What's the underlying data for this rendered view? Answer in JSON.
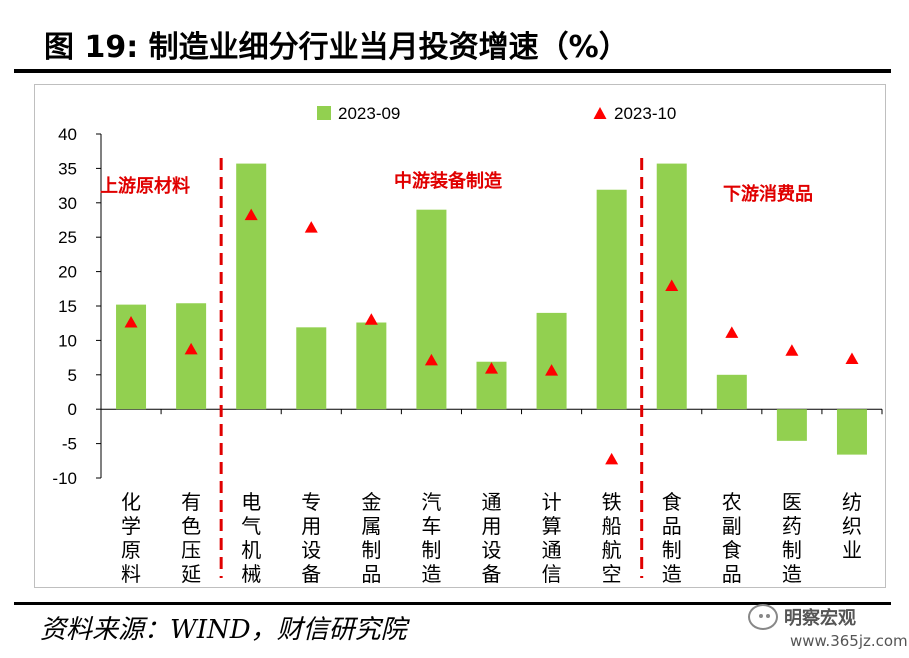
{
  "header": {
    "title": "图 19:  制造业细分行业当月投资增速（%）"
  },
  "footer": {
    "source": "资料来源：WIND，财信研究院",
    "watermark_name": "明察宏观",
    "watermark_url": "www.365jz.com"
  },
  "chart_data": {
    "type": "bar",
    "title": "",
    "xlabel": "",
    "ylabel": "",
    "ylim": [
      -10,
      40
    ],
    "yticks": [
      40,
      35,
      30,
      25,
      20,
      15,
      10,
      5,
      0,
      -5,
      -10
    ],
    "categories": [
      "化学原料",
      "有色压延",
      "电气机械",
      "专用设备",
      "金属制品",
      "汽车制造",
      "通用设备",
      "计算通信",
      "铁船航空",
      "食品制造",
      "农副食品",
      "医药制造",
      "纺织业"
    ],
    "series": [
      {
        "name": "2023-09",
        "kind": "bar",
        "color": "#92d050",
        "values": [
          15.2,
          15.4,
          35.7,
          11.9,
          12.6,
          29.0,
          6.9,
          14.0,
          31.9,
          35.7,
          5.0,
          -4.6,
          -6.6
        ]
      },
      {
        "name": "2023-10",
        "kind": "marker",
        "color": "#ff0000",
        "values": [
          12.6,
          8.7,
          28.2,
          26.4,
          13.0,
          7.1,
          5.9,
          5.6,
          -7.3,
          17.9,
          11.1,
          8.5,
          7.3
        ]
      }
    ],
    "groups": [
      {
        "label": "上游原材料"
      },
      {
        "label": "中游装备制造"
      },
      {
        "label": "下游消费品"
      }
    ],
    "group_color": "#e00000",
    "legend_position": "top"
  }
}
